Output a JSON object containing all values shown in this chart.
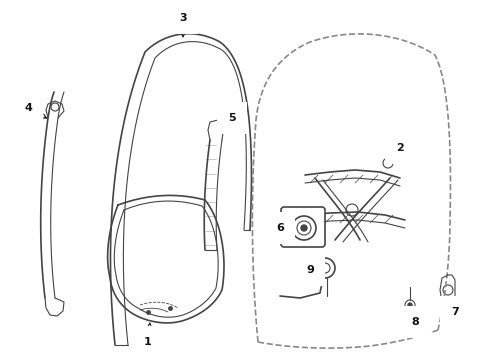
{
  "bg_color": "#ffffff",
  "line_color": "#444444",
  "dash_color": "#888888",
  "label_color": "#111111",
  "figsize": [
    4.89,
    3.6
  ],
  "dpi": 100
}
